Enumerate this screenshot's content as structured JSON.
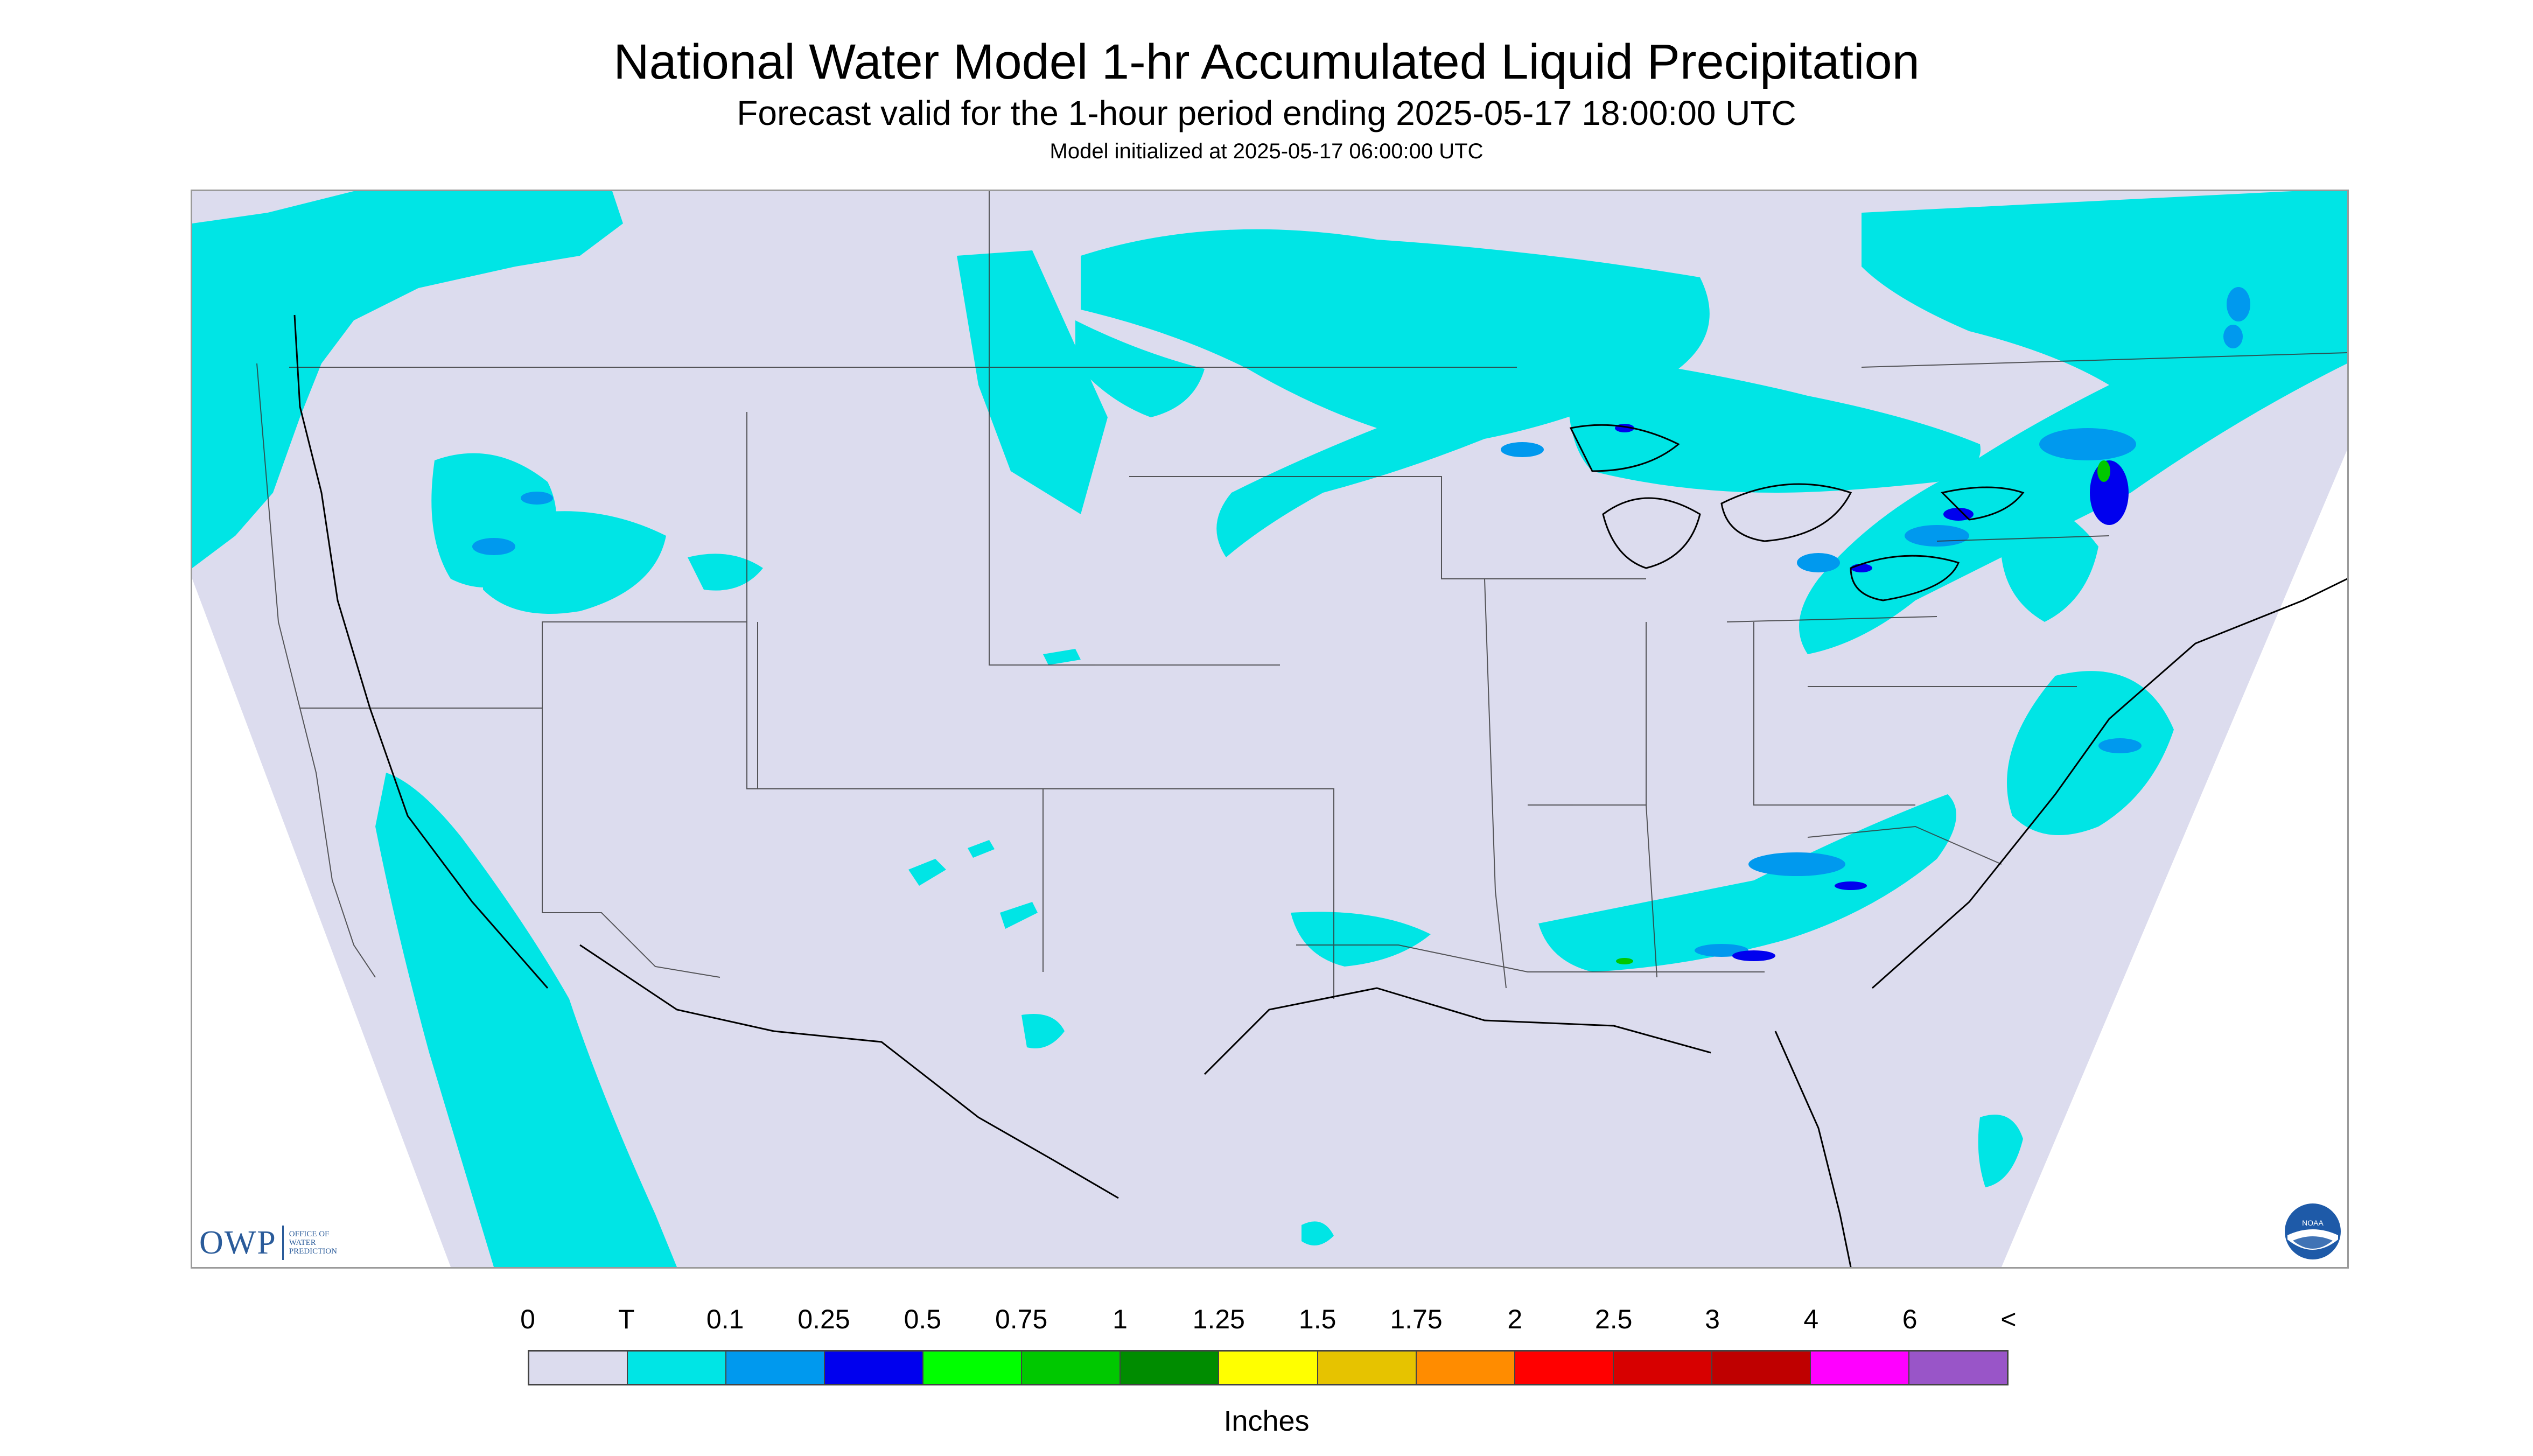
{
  "header": {
    "title": "National Water Model 1-hr Accumulated Liquid Precipitation",
    "subtitle": "Forecast valid for the 1-hour period ending 2025-05-17 18:00:00 UTC",
    "init": "Model initialized at 2025-05-17 06:00:00 UTC"
  },
  "logos": {
    "owp_text": "OWP",
    "owp_line1": "OFFICE OF",
    "owp_line2": "WATER",
    "owp_line3": "PREDICTION",
    "noaa_text": "NOAA"
  },
  "legend": {
    "labels": [
      "0",
      "T",
      "0.1",
      "0.25",
      "0.5",
      "0.75",
      "1",
      "1.25",
      "1.5",
      "1.75",
      "2",
      "2.5",
      "3",
      "4",
      "6",
      "<"
    ],
    "colors": [
      "#dcdcee",
      "#00e5e5",
      "#0099ee",
      "#0000ee",
      "#00ff00",
      "#00c800",
      "#008c00",
      "#ffff00",
      "#e6c300",
      "#ff8c00",
      "#ff0000",
      "#d70000",
      "#bf0000",
      "#ff00ff",
      "#9955c8"
    ],
    "units": "Inches"
  },
  "map": {
    "background_color": "#dcdcee",
    "trace_color": "#00e5e5",
    "light_color": "#0099ee",
    "moderate_color": "#0000ee",
    "heavy_color": "#00c800"
  }
}
